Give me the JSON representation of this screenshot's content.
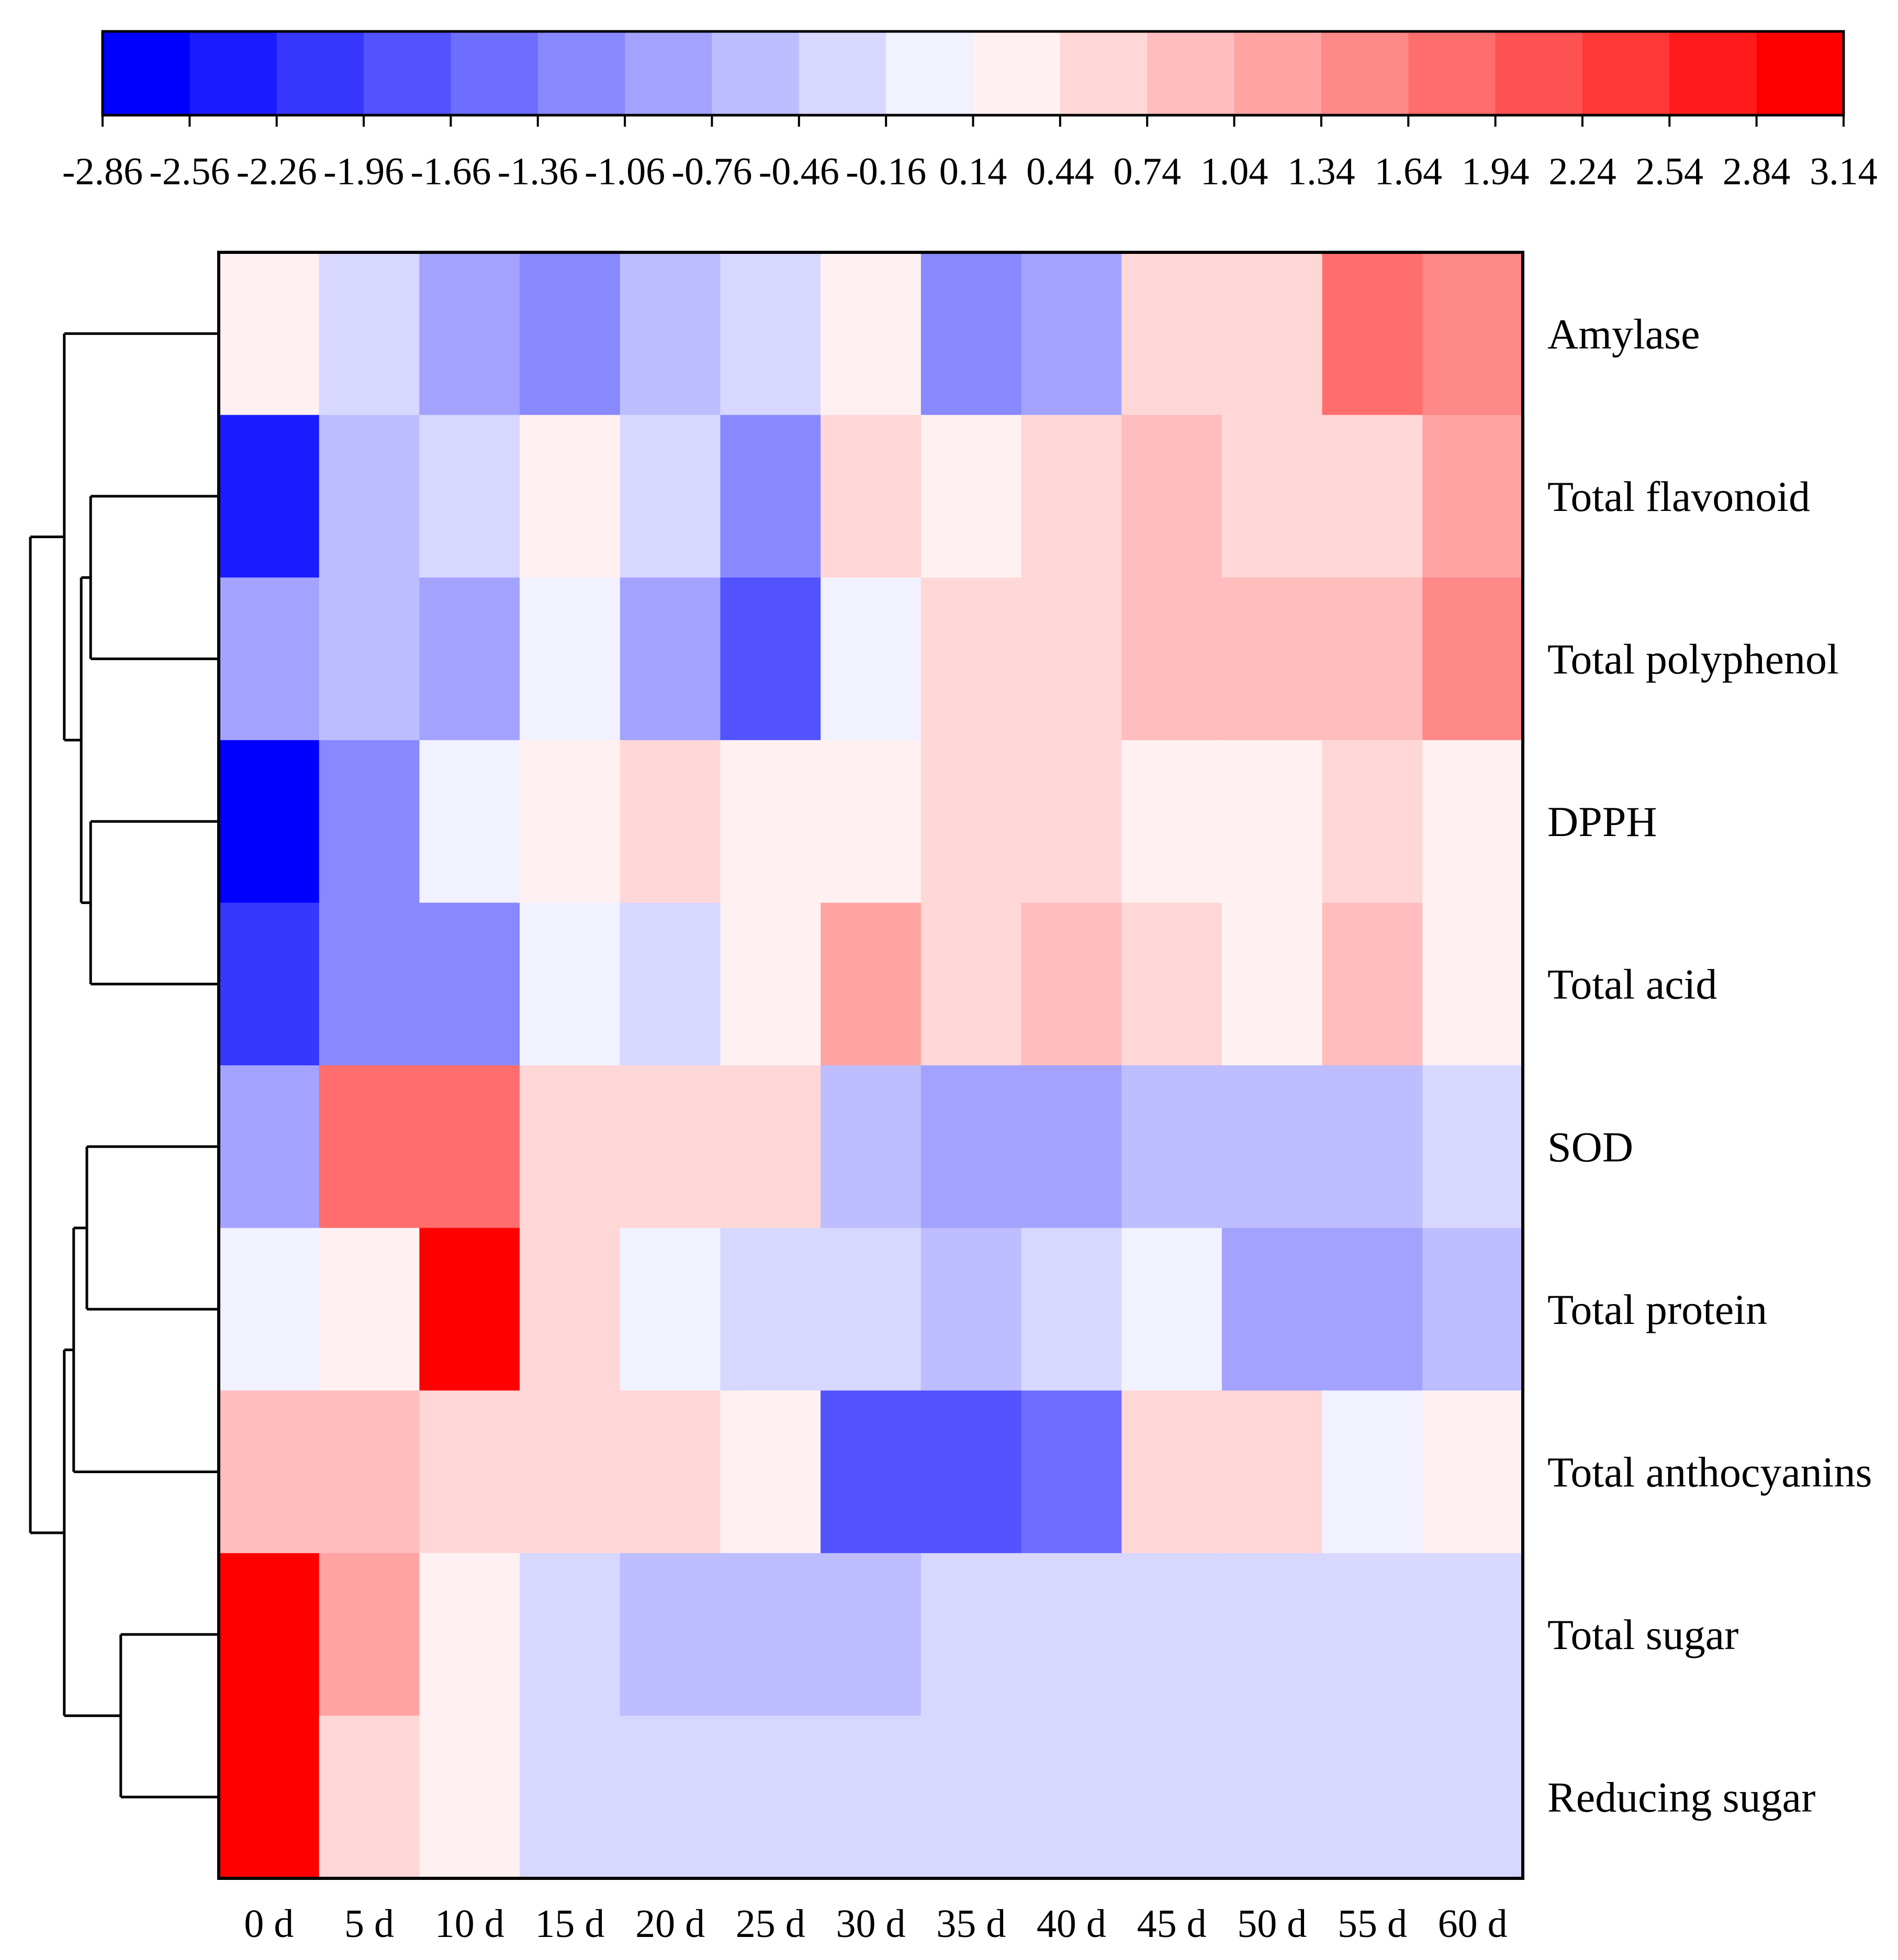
{
  "chart_data": {
    "type": "heatmap",
    "color_scale": {
      "ticks": [
        "-2.86",
        "-2.56",
        "-2.26",
        "-1.96",
        "-1.66",
        "-1.36",
        "-1.06",
        "-0.76",
        "-0.46",
        "-0.16",
        "0.14",
        "0.44",
        "0.74",
        "1.04",
        "1.34",
        "1.64",
        "1.94",
        "2.24",
        "2.54",
        "2.84",
        "3.14"
      ],
      "min": -2.86,
      "max": 3.14,
      "bin_colors": [
        "#0000ff",
        "#1b1bff",
        "#3737ff",
        "#5252ff",
        "#6d6dff",
        "#8888ff",
        "#a3a3ff",
        "#bdbdff",
        "#d7d7ff",
        "#f1f1ff",
        "#fff1f1",
        "#ffd7d7",
        "#ffbdbd",
        "#ffa3a3",
        "#ff8888",
        "#ff6d6d",
        "#ff5252",
        "#ff3737",
        "#ff1b1b",
        "#ff0000"
      ]
    },
    "columns": [
      "0 d",
      "5 d",
      "10 d",
      "15 d",
      "20 d",
      "25 d",
      "30 d",
      "35 d",
      "40 d",
      "45 d",
      "50 d",
      "55 d",
      "60 d"
    ],
    "rows": [
      "Amylase",
      "Total flavonoid",
      "Total polyphenol",
      "DPPH",
      "Total acid",
      "SOD",
      "Total protein",
      "Total anthocyanins",
      "Total sugar",
      "Reducing sugar"
    ],
    "values": [
      [
        0.3,
        -0.3,
        -0.9,
        -1.2,
        -0.6,
        -0.3,
        0.3,
        -1.2,
        -0.9,
        0.6,
        0.6,
        1.8,
        1.5
      ],
      [
        -2.4,
        -0.6,
        -0.3,
        0.3,
        -0.3,
        -1.2,
        0.6,
        0.3,
        0.6,
        0.9,
        0.6,
        0.6,
        1.2
      ],
      [
        -0.9,
        -0.6,
        -0.9,
        0.0,
        -0.9,
        -1.8,
        0.0,
        0.6,
        0.6,
        0.9,
        0.9,
        0.9,
        1.5
      ],
      [
        -2.7,
        -1.2,
        0.0,
        0.3,
        0.6,
        0.3,
        0.3,
        0.6,
        0.6,
        0.3,
        0.3,
        0.6,
        0.3
      ],
      [
        -2.1,
        -1.2,
        -1.2,
        0.0,
        -0.3,
        0.3,
        1.2,
        0.6,
        0.9,
        0.6,
        0.3,
        0.9,
        0.3
      ],
      [
        -0.9,
        1.8,
        1.8,
        0.6,
        0.6,
        0.6,
        -0.6,
        -0.9,
        -0.9,
        -0.6,
        -0.6,
        -0.6,
        -0.3
      ],
      [
        0.0,
        0.3,
        3.0,
        0.6,
        0.0,
        -0.3,
        -0.3,
        -0.6,
        -0.3,
        0.0,
        -0.9,
        -0.9,
        -0.6
      ],
      [
        0.9,
        0.9,
        0.6,
        0.6,
        0.6,
        0.3,
        -1.8,
        -1.8,
        -1.5,
        0.6,
        0.6,
        0.0,
        0.3
      ],
      [
        3.0,
        1.2,
        0.3,
        -0.3,
        -0.6,
        -0.6,
        -0.6,
        -0.3,
        -0.3,
        -0.3,
        -0.3,
        -0.3,
        -0.3
      ],
      [
        3.0,
        0.6,
        0.3,
        -0.3,
        -0.3,
        -0.3,
        -0.3,
        -0.3,
        -0.3,
        -0.3,
        -0.3,
        -0.3,
        -0.3
      ]
    ],
    "dendrogram": "row clustering: (Amylase, ((Total flavonoid, Total polyphenol), (DPPH, Total acid))), (((SOD, Total protein), Total anthocyanins), (Total sugar, Reducing sugar))",
    "title": "",
    "xlabel": "",
    "ylabel": ""
  }
}
